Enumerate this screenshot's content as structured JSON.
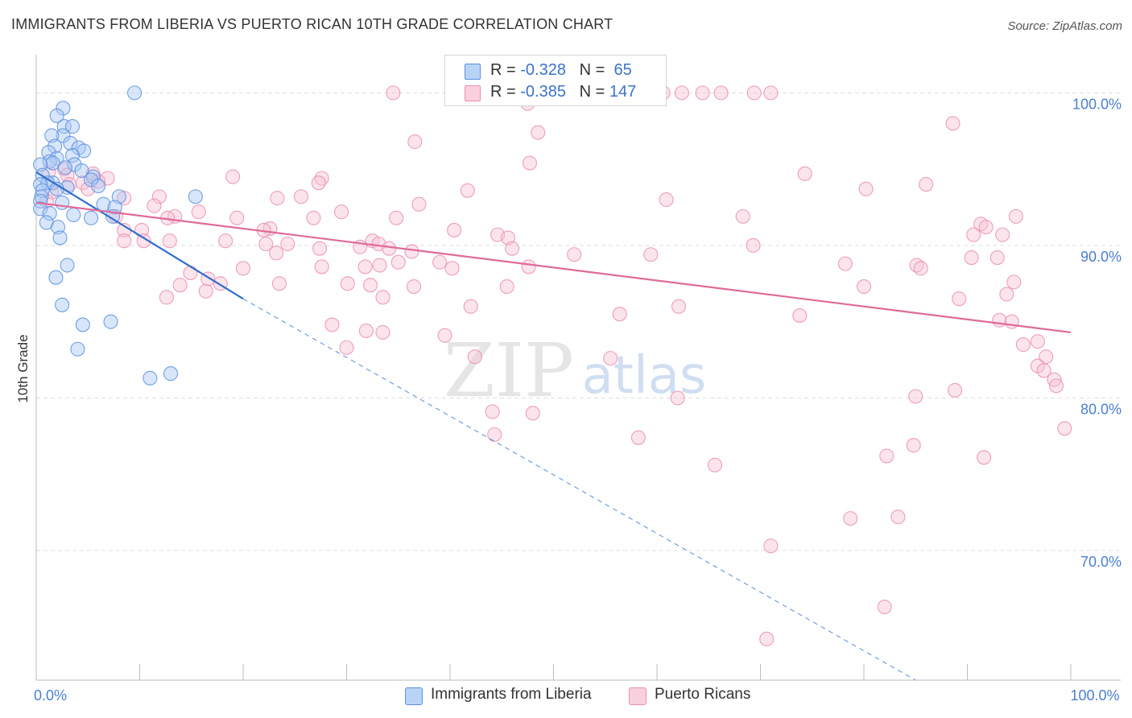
{
  "title": "IMMIGRANTS FROM LIBERIA VS PUERTO RICAN 10TH GRADE CORRELATION CHART",
  "source": "Source: ZipAtlas.com",
  "watermark": {
    "zip": "ZIP",
    "atlas": "atlas"
  },
  "colors": {
    "liberia_fill": "#a9c8f5",
    "liberia_stroke": "#5b8fe0",
    "liberia_line": "#2f6fce",
    "pr_fill": "#f7c3d4",
    "pr_stroke": "#ea8fb0",
    "pr_line": "#e06a98",
    "tick_text": "#4a7fd0",
    "grid": "#dddddd"
  },
  "stats": [
    {
      "r_label": "R =",
      "r_value": "-0.328",
      "n_label": "N =",
      "n_value": "65"
    },
    {
      "r_label": "R =",
      "r_value": "-0.385",
      "n_label": "N =",
      "n_value": "147"
    }
  ],
  "legend": [
    "Immigrants from Liberia",
    "Puerto Ricans"
  ],
  "chart_data": {
    "type": "scatter",
    "title": "IMMIGRANTS FROM LIBERIA VS PUERTO RICAN 10TH GRADE CORRELATION CHART",
    "xlabel": "",
    "ylabel": "10th Grade",
    "xlim": [
      0,
      100
    ],
    "ylim": [
      61.5,
      102.5
    ],
    "x_tick_labels": [
      {
        "value": 0,
        "label": "0.0%"
      },
      {
        "value": 100,
        "label": "100.0%"
      }
    ],
    "y_ticks": [
      {
        "value": 100,
        "label": "100.0%"
      },
      {
        "value": 90,
        "label": "90.0%"
      },
      {
        "value": 80,
        "label": "80.0%"
      },
      {
        "value": 70,
        "label": "70.0%"
      }
    ],
    "series": [
      {
        "name": "Immigrants from Liberia",
        "r": -0.328,
        "n": 65,
        "trend": {
          "x0": 0,
          "y0": 94.8,
          "x1": 20,
          "y1": 86.5,
          "dashed_to_x": 85,
          "dashed_to_y": 61.5
        },
        "points": [
          [
            9.5,
            100.0
          ],
          [
            2.6,
            99.0
          ],
          [
            2.0,
            98.5
          ],
          [
            2.7,
            97.8
          ],
          [
            3.5,
            97.8
          ],
          [
            2.6,
            97.2
          ],
          [
            1.5,
            97.2
          ],
          [
            1.8,
            96.5
          ],
          [
            3.3,
            96.7
          ],
          [
            4.1,
            96.4
          ],
          [
            4.6,
            96.2
          ],
          [
            1.2,
            96.1
          ],
          [
            3.5,
            95.9
          ],
          [
            2.0,
            95.7
          ],
          [
            1.3,
            95.5
          ],
          [
            1.6,
            95.4
          ],
          [
            0.4,
            95.3
          ],
          [
            3.7,
            95.3
          ],
          [
            2.8,
            95.1
          ],
          [
            4.4,
            94.9
          ],
          [
            0.6,
            94.6
          ],
          [
            5.5,
            94.5
          ],
          [
            5.3,
            94.3
          ],
          [
            1.6,
            94.1
          ],
          [
            1.1,
            94.1
          ],
          [
            0.4,
            94.0
          ],
          [
            3.0,
            93.8
          ],
          [
            2.0,
            93.7
          ],
          [
            6.0,
            93.9
          ],
          [
            0.6,
            93.6
          ],
          [
            0.5,
            93.2
          ],
          [
            8.0,
            93.2
          ],
          [
            15.4,
            93.2
          ],
          [
            0.4,
            92.9
          ],
          [
            2.5,
            92.8
          ],
          [
            6.5,
            92.7
          ],
          [
            7.6,
            92.5
          ],
          [
            0.4,
            92.4
          ],
          [
            1.3,
            92.1
          ],
          [
            3.6,
            92.0
          ],
          [
            5.3,
            91.8
          ],
          [
            7.4,
            91.9
          ],
          [
            1.0,
            91.5
          ],
          [
            2.1,
            91.2
          ],
          [
            2.3,
            90.5
          ],
          [
            3.0,
            88.7
          ],
          [
            1.9,
            87.9
          ],
          [
            2.5,
            86.1
          ],
          [
            4.5,
            84.8
          ],
          [
            7.2,
            85.0
          ],
          [
            4.0,
            83.2
          ],
          [
            13.0,
            81.6
          ],
          [
            11.0,
            81.3
          ]
        ]
      },
      {
        "name": "Puerto Ricans",
        "r": -0.385,
        "n": 147,
        "trend": {
          "x0": 0,
          "y0": 92.8,
          "x1": 100,
          "y1": 84.3
        },
        "points": [
          [
            34.5,
            100.0
          ],
          [
            60.0,
            100.0
          ],
          [
            60.6,
            100.0
          ],
          [
            62.4,
            100.0
          ],
          [
            64.4,
            100.0
          ],
          [
            66.2,
            100.0
          ],
          [
            69.4,
            100.0
          ],
          [
            71.0,
            100.0
          ],
          [
            88.6,
            98.0
          ],
          [
            47.5,
            99.3
          ],
          [
            36.6,
            96.8
          ],
          [
            48.5,
            97.4
          ],
          [
            47.7,
            95.4
          ],
          [
            74.3,
            94.7
          ],
          [
            2.7,
            95.0
          ],
          [
            1.2,
            94.8
          ],
          [
            3.0,
            94.6
          ],
          [
            5.5,
            94.7
          ],
          [
            6.9,
            94.4
          ],
          [
            6.0,
            94.2
          ],
          [
            19.0,
            94.5
          ],
          [
            27.6,
            94.4
          ],
          [
            27.3,
            94.1
          ],
          [
            3.2,
            94.0
          ],
          [
            4.5,
            94.1
          ],
          [
            1.5,
            93.5
          ],
          [
            5.0,
            93.7
          ],
          [
            86.0,
            94.0
          ],
          [
            80.2,
            93.7
          ],
          [
            41.7,
            93.6
          ],
          [
            11.9,
            93.2
          ],
          [
            23.3,
            93.1
          ],
          [
            25.6,
            93.2
          ],
          [
            8.5,
            93.1
          ],
          [
            60.9,
            93.0
          ],
          [
            1.0,
            92.9
          ],
          [
            11.4,
            92.6
          ],
          [
            37.0,
            92.7
          ],
          [
            15.7,
            92.2
          ],
          [
            29.5,
            92.2
          ],
          [
            7.7,
            91.9
          ],
          [
            13.4,
            91.9
          ],
          [
            12.7,
            91.8
          ],
          [
            19.4,
            91.8
          ],
          [
            26.8,
            91.8
          ],
          [
            34.8,
            91.8
          ],
          [
            68.3,
            91.9
          ],
          [
            94.7,
            91.9
          ],
          [
            91.3,
            91.4
          ],
          [
            91.8,
            91.2
          ],
          [
            8.5,
            91.0
          ],
          [
            10.2,
            91.0
          ],
          [
            22.6,
            91.1
          ],
          [
            22.0,
            91.0
          ],
          [
            40.4,
            91.0
          ],
          [
            44.6,
            90.7
          ],
          [
            45.6,
            90.5
          ],
          [
            90.6,
            90.7
          ],
          [
            93.4,
            90.7
          ],
          [
            8.5,
            90.3
          ],
          [
            10.4,
            90.3
          ],
          [
            12.9,
            90.3
          ],
          [
            18.3,
            90.3
          ],
          [
            22.2,
            90.1
          ],
          [
            24.3,
            90.1
          ],
          [
            32.5,
            90.3
          ],
          [
            33.1,
            90.1
          ],
          [
            23.2,
            89.5
          ],
          [
            31.3,
            89.9
          ],
          [
            27.4,
            89.8
          ],
          [
            34.1,
            89.8
          ],
          [
            36.3,
            89.6
          ],
          [
            46.0,
            89.8
          ],
          [
            52.0,
            89.4
          ],
          [
            59.4,
            89.4
          ],
          [
            69.3,
            90.0
          ],
          [
            90.4,
            89.2
          ],
          [
            92.9,
            89.2
          ],
          [
            78.2,
            88.8
          ],
          [
            85.1,
            88.7
          ],
          [
            85.5,
            88.5
          ],
          [
            20.0,
            88.5
          ],
          [
            27.6,
            88.6
          ],
          [
            31.8,
            88.6
          ],
          [
            33.2,
            88.7
          ],
          [
            35.0,
            88.9
          ],
          [
            39.0,
            88.9
          ],
          [
            40.2,
            88.5
          ],
          [
            47.6,
            88.6
          ],
          [
            14.9,
            88.2
          ],
          [
            16.6,
            87.8
          ],
          [
            17.8,
            87.5
          ],
          [
            23.5,
            87.5
          ],
          [
            30.1,
            87.5
          ],
          [
            32.3,
            87.4
          ],
          [
            36.5,
            87.3
          ],
          [
            45.5,
            87.3
          ],
          [
            13.9,
            87.4
          ],
          [
            16.4,
            87.0
          ],
          [
            12.6,
            86.6
          ],
          [
            33.5,
            86.6
          ],
          [
            80.0,
            87.3
          ],
          [
            94.5,
            87.6
          ],
          [
            93.8,
            86.8
          ],
          [
            89.2,
            86.5
          ],
          [
            42.0,
            86.0
          ],
          [
            62.1,
            86.0
          ],
          [
            56.4,
            85.5
          ],
          [
            73.8,
            85.4
          ],
          [
            93.1,
            85.1
          ],
          [
            94.3,
            85.0
          ],
          [
            28.6,
            84.8
          ],
          [
            31.9,
            84.4
          ],
          [
            33.5,
            84.3
          ],
          [
            39.5,
            84.1
          ],
          [
            96.8,
            83.7
          ],
          [
            30.0,
            83.3
          ],
          [
            95.4,
            83.5
          ],
          [
            42.4,
            82.7
          ],
          [
            55.5,
            82.6
          ],
          [
            97.6,
            82.7
          ],
          [
            96.8,
            82.1
          ],
          [
            97.4,
            81.8
          ],
          [
            98.4,
            81.2
          ],
          [
            98.6,
            80.8
          ],
          [
            88.8,
            80.5
          ],
          [
            85.0,
            80.1
          ],
          [
            62.0,
            80.0
          ],
          [
            44.1,
            79.1
          ],
          [
            48.0,
            79.0
          ],
          [
            99.4,
            78.0
          ],
          [
            44.3,
            77.6
          ],
          [
            58.2,
            77.4
          ],
          [
            84.8,
            76.9
          ],
          [
            82.2,
            76.2
          ],
          [
            91.6,
            76.1
          ],
          [
            65.6,
            75.6
          ],
          [
            71.0,
            70.3
          ],
          [
            83.3,
            72.2
          ],
          [
            78.7,
            72.1
          ],
          [
            82.0,
            66.3
          ],
          [
            70.6,
            64.2
          ]
        ]
      }
    ]
  }
}
